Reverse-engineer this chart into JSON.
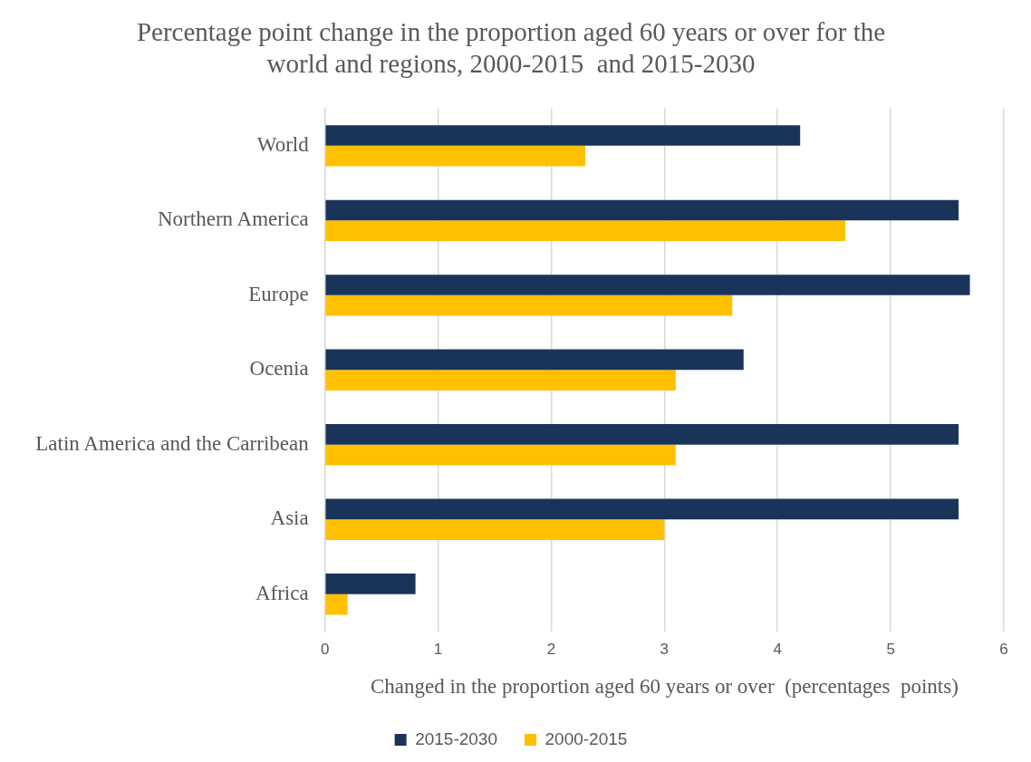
{
  "chart_data": {
    "type": "bar",
    "orientation": "horizontal",
    "title": "Percentage point change in the proportion aged 60 years or over for the world and regions, 2000-2015  and 2015-2030",
    "xlabel": "Changed in the proportion aged 60 years or over  (percentages  points)",
    "categories": [
      "World",
      "Northern America",
      "Europe",
      "Ocenia",
      "Latin America and the Carribean",
      "Asia",
      "Africa"
    ],
    "series": [
      {
        "name": "2015-2030",
        "color": "#1a3459",
        "values": [
          4.2,
          5.6,
          5.7,
          3.7,
          5.6,
          5.6,
          0.8
        ]
      },
      {
        "name": "2000-2015",
        "color": "#ffc000",
        "values": [
          2.3,
          4.6,
          3.6,
          3.1,
          3.1,
          3.0,
          0.2
        ]
      }
    ],
    "xlim": [
      0,
      6
    ],
    "xticks": [
      0,
      1,
      2,
      3,
      4,
      5,
      6
    ],
    "grid": "x",
    "legend": "bottom"
  }
}
